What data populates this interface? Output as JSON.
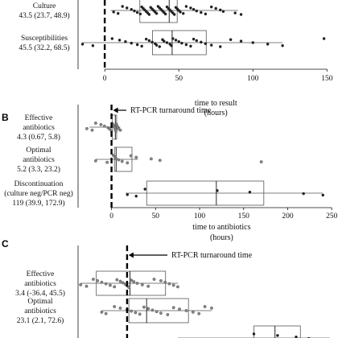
{
  "colors": {
    "ink": "#111111",
    "box": "#555555",
    "point_dark": "#222222",
    "point_grey": "#888888",
    "background": "#ffffff"
  },
  "chart_data": [
    {
      "panel_label": "",
      "type": "boxplot",
      "xlabel": "time to result",
      "xlabel_units": "(hours)",
      "xlim": [
        -18,
        152
      ],
      "xticks": [
        0,
        50,
        100,
        150
      ],
      "reference_line": {
        "x": 0,
        "label": ""
      },
      "rows": [
        {
          "label_lines": [
            "Culture"
          ],
          "stat": "43.5 (23.7, 48.9)",
          "box": [
            23.7,
            43.5,
            48.9
          ],
          "whiskers": [
            4,
            90
          ],
          "point_shade": "dark",
          "points": [
            6,
            9,
            12,
            15,
            18,
            20,
            22,
            24,
            25,
            26,
            27,
            28,
            29,
            30,
            31,
            32,
            33,
            34,
            35,
            36,
            37,
            38,
            39,
            40,
            41,
            42,
            43,
            44,
            45,
            46,
            47,
            48,
            49,
            50,
            51,
            53,
            55,
            58,
            60,
            62,
            65,
            68,
            72,
            75,
            78,
            80,
            88,
            92
          ]
        },
        {
          "label_lines": [
            "Susceptibilities"
          ],
          "stat": "45.5 (32.2, 68.5)",
          "box": [
            32.2,
            45.5,
            68.5
          ],
          "whiskers": [
            -15,
            120
          ],
          "point_shade": "dark",
          "points": [
            -15,
            -8,
            5,
            10,
            14,
            18,
            22,
            25,
            28,
            30,
            32,
            34,
            35,
            37,
            39,
            40,
            42,
            44,
            45,
            46,
            48,
            50,
            52,
            55,
            58,
            60,
            62,
            65,
            68,
            72,
            78,
            85,
            92,
            100,
            110,
            120,
            148
          ]
        }
      ]
    },
    {
      "panel_label": "B",
      "type": "boxplot",
      "xlabel": "time to antibiotics",
      "xlabel_units": "(hours)",
      "xlim": [
        -38,
        248
      ],
      "xticks": [
        0,
        50,
        100,
        150,
        200,
        250
      ],
      "reference_line": {
        "x": 0,
        "label": "RT-PCR turnaround time"
      },
      "rows": [
        {
          "label_lines": [
            "Effective",
            "antibiotics"
          ],
          "stat": "4.3 (0.67, 5.8)",
          "box": [
            0.67,
            4.3,
            5.8
          ],
          "whiskers": [
            -25,
            10
          ],
          "point_shade": "grey",
          "points": [
            -28,
            -22,
            -18,
            -12,
            -8,
            -4,
            -2,
            0,
            1,
            2,
            3,
            4,
            4.5,
            5,
            5.5,
            6,
            7,
            8,
            10
          ]
        },
        {
          "label_lines": [
            "Optimal",
            "antibiotics"
          ],
          "stat": "5.2 (3.3, 23.2)",
          "box": [
            3.3,
            5.2,
            23.2
          ],
          "whiskers": [
            -18,
            30
          ],
          "point_shade": "grey",
          "points": [
            -18,
            -5,
            2,
            4,
            5,
            8,
            12,
            18,
            22,
            28,
            45,
            55,
            170
          ]
        },
        {
          "label_lines": [
            "Discontinuation",
            "(culture neg/PCR neg)"
          ],
          "stat": "119 (39.9, 172.9)",
          "box": [
            39.9,
            119,
            172.9
          ],
          "whiskers": [
            16,
            240
          ],
          "point_shade": "dark",
          "points": [
            18,
            28,
            38,
            120,
            157,
            218,
            240
          ]
        }
      ]
    },
    {
      "panel_label": "C",
      "type": "boxplot",
      "xlabel": "",
      "xlabel_units": "",
      "xlim": [
        -58,
        240
      ],
      "xticks": [],
      "reference_line": {
        "x": 0,
        "label": "RT-PCR turnaround time"
      },
      "rows": [
        {
          "label_lines": [
            "Effective",
            "antibiotics"
          ],
          "stat": "3.4 (-36.4, 45.5)",
          "box": [
            -36.4,
            3.4,
            45.5
          ],
          "whiskers": [
            -55,
            60
          ],
          "point_shade": "grey",
          "points": [
            -55,
            -48,
            -40,
            -35,
            -30,
            -25,
            -20,
            -15,
            -12,
            -8,
            -5,
            -2,
            0,
            2,
            5,
            8,
            12,
            18,
            25,
            32,
            40,
            45,
            50,
            55,
            60
          ]
        },
        {
          "label_lines": [
            "Optimal",
            "antibiotics"
          ],
          "stat": "23.1 (2.1, 72.6)",
          "box": [
            2.1,
            23.1,
            72.6
          ],
          "whiskers": [
            -30,
            100
          ],
          "point_shade": "grey",
          "points": [
            -30,
            -25,
            -15,
            -8,
            0,
            5,
            10,
            15,
            20,
            25,
            30,
            35,
            40,
            48,
            55,
            62,
            70,
            78,
            85,
            92,
            100
          ]
        },
        {
          "label_lines": [],
          "stat": "",
          "box": [
            150,
            175,
            205
          ],
          "whiskers": [
            60,
            240
          ],
          "point_shade": "dark",
          "points": [
            60,
            95,
            150,
            178,
            200,
            215
          ]
        }
      ]
    }
  ]
}
